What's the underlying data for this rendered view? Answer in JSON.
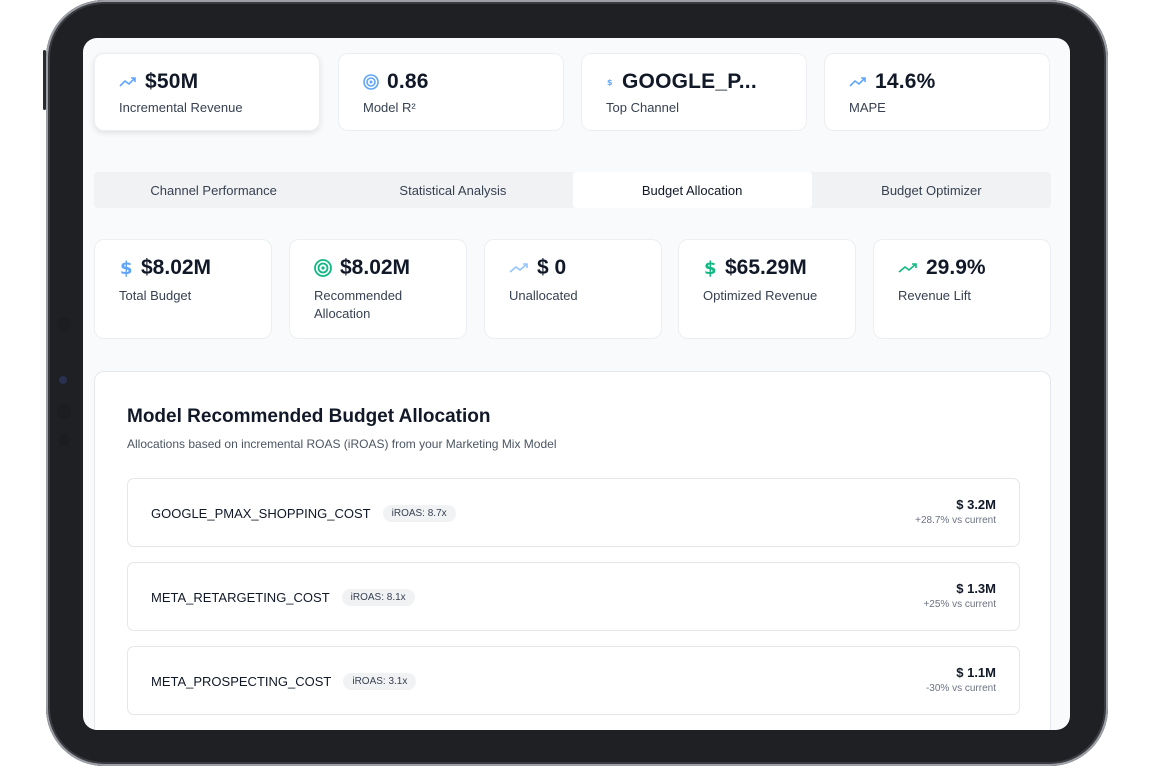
{
  "kpis": [
    {
      "value": "$50M",
      "label": "Incremental Revenue",
      "icon": "trend-up-icon"
    },
    {
      "value": "0.86",
      "label": "Model R²",
      "icon": "target-icon"
    },
    {
      "value": "GOOGLE_P...",
      "label": "Top Channel",
      "icon": "dollar-icon"
    },
    {
      "value": "14.6%",
      "label": "MAPE",
      "icon": "trend-up-icon"
    }
  ],
  "tabs": [
    {
      "label": "Channel Performance"
    },
    {
      "label": "Statistical Analysis"
    },
    {
      "label": "Budget Allocation"
    },
    {
      "label": "Budget Optimizer"
    }
  ],
  "active_tab": "Budget Allocation",
  "stats": [
    {
      "value": "$8.02M",
      "label": "Total Budget",
      "icon": "dollar-icon"
    },
    {
      "value": "$8.02M",
      "label": "Recommended Allocation",
      "icon": "target-icon"
    },
    {
      "value": "$ 0",
      "label": "Unallocated",
      "icon": "trend-up-icon"
    },
    {
      "value": "$65.29M",
      "label": "Optimized Revenue",
      "icon": "dollar-icon"
    },
    {
      "value": "29.9%",
      "label": "Revenue Lift",
      "icon": "trend-up-icon"
    }
  ],
  "allocation": {
    "title": "Model Recommended Budget Allocation",
    "subtitle": "Allocations based on incremental ROAS (iROAS) from your Marketing Mix Model",
    "items": [
      {
        "channel": "GOOGLE_PMAX_SHOPPING_COST",
        "iroas": "iROAS: 8.7x",
        "amount": "$ 3.2M",
        "delta": "+28.7% vs current"
      },
      {
        "channel": "META_RETARGETING_COST",
        "iroas": "iROAS: 8.1x",
        "amount": "$ 1.3M",
        "delta": "+25% vs current"
      },
      {
        "channel": "META_PROSPECTING_COST",
        "iroas": "iROAS: 3.1x",
        "amount": "$ 1.1M",
        "delta": "-30% vs current"
      }
    ]
  },
  "colors": {
    "accent_blue": "#60a5fa",
    "accent_green": "#10b981",
    "text_primary": "#111827",
    "text_secondary": "#374151"
  }
}
